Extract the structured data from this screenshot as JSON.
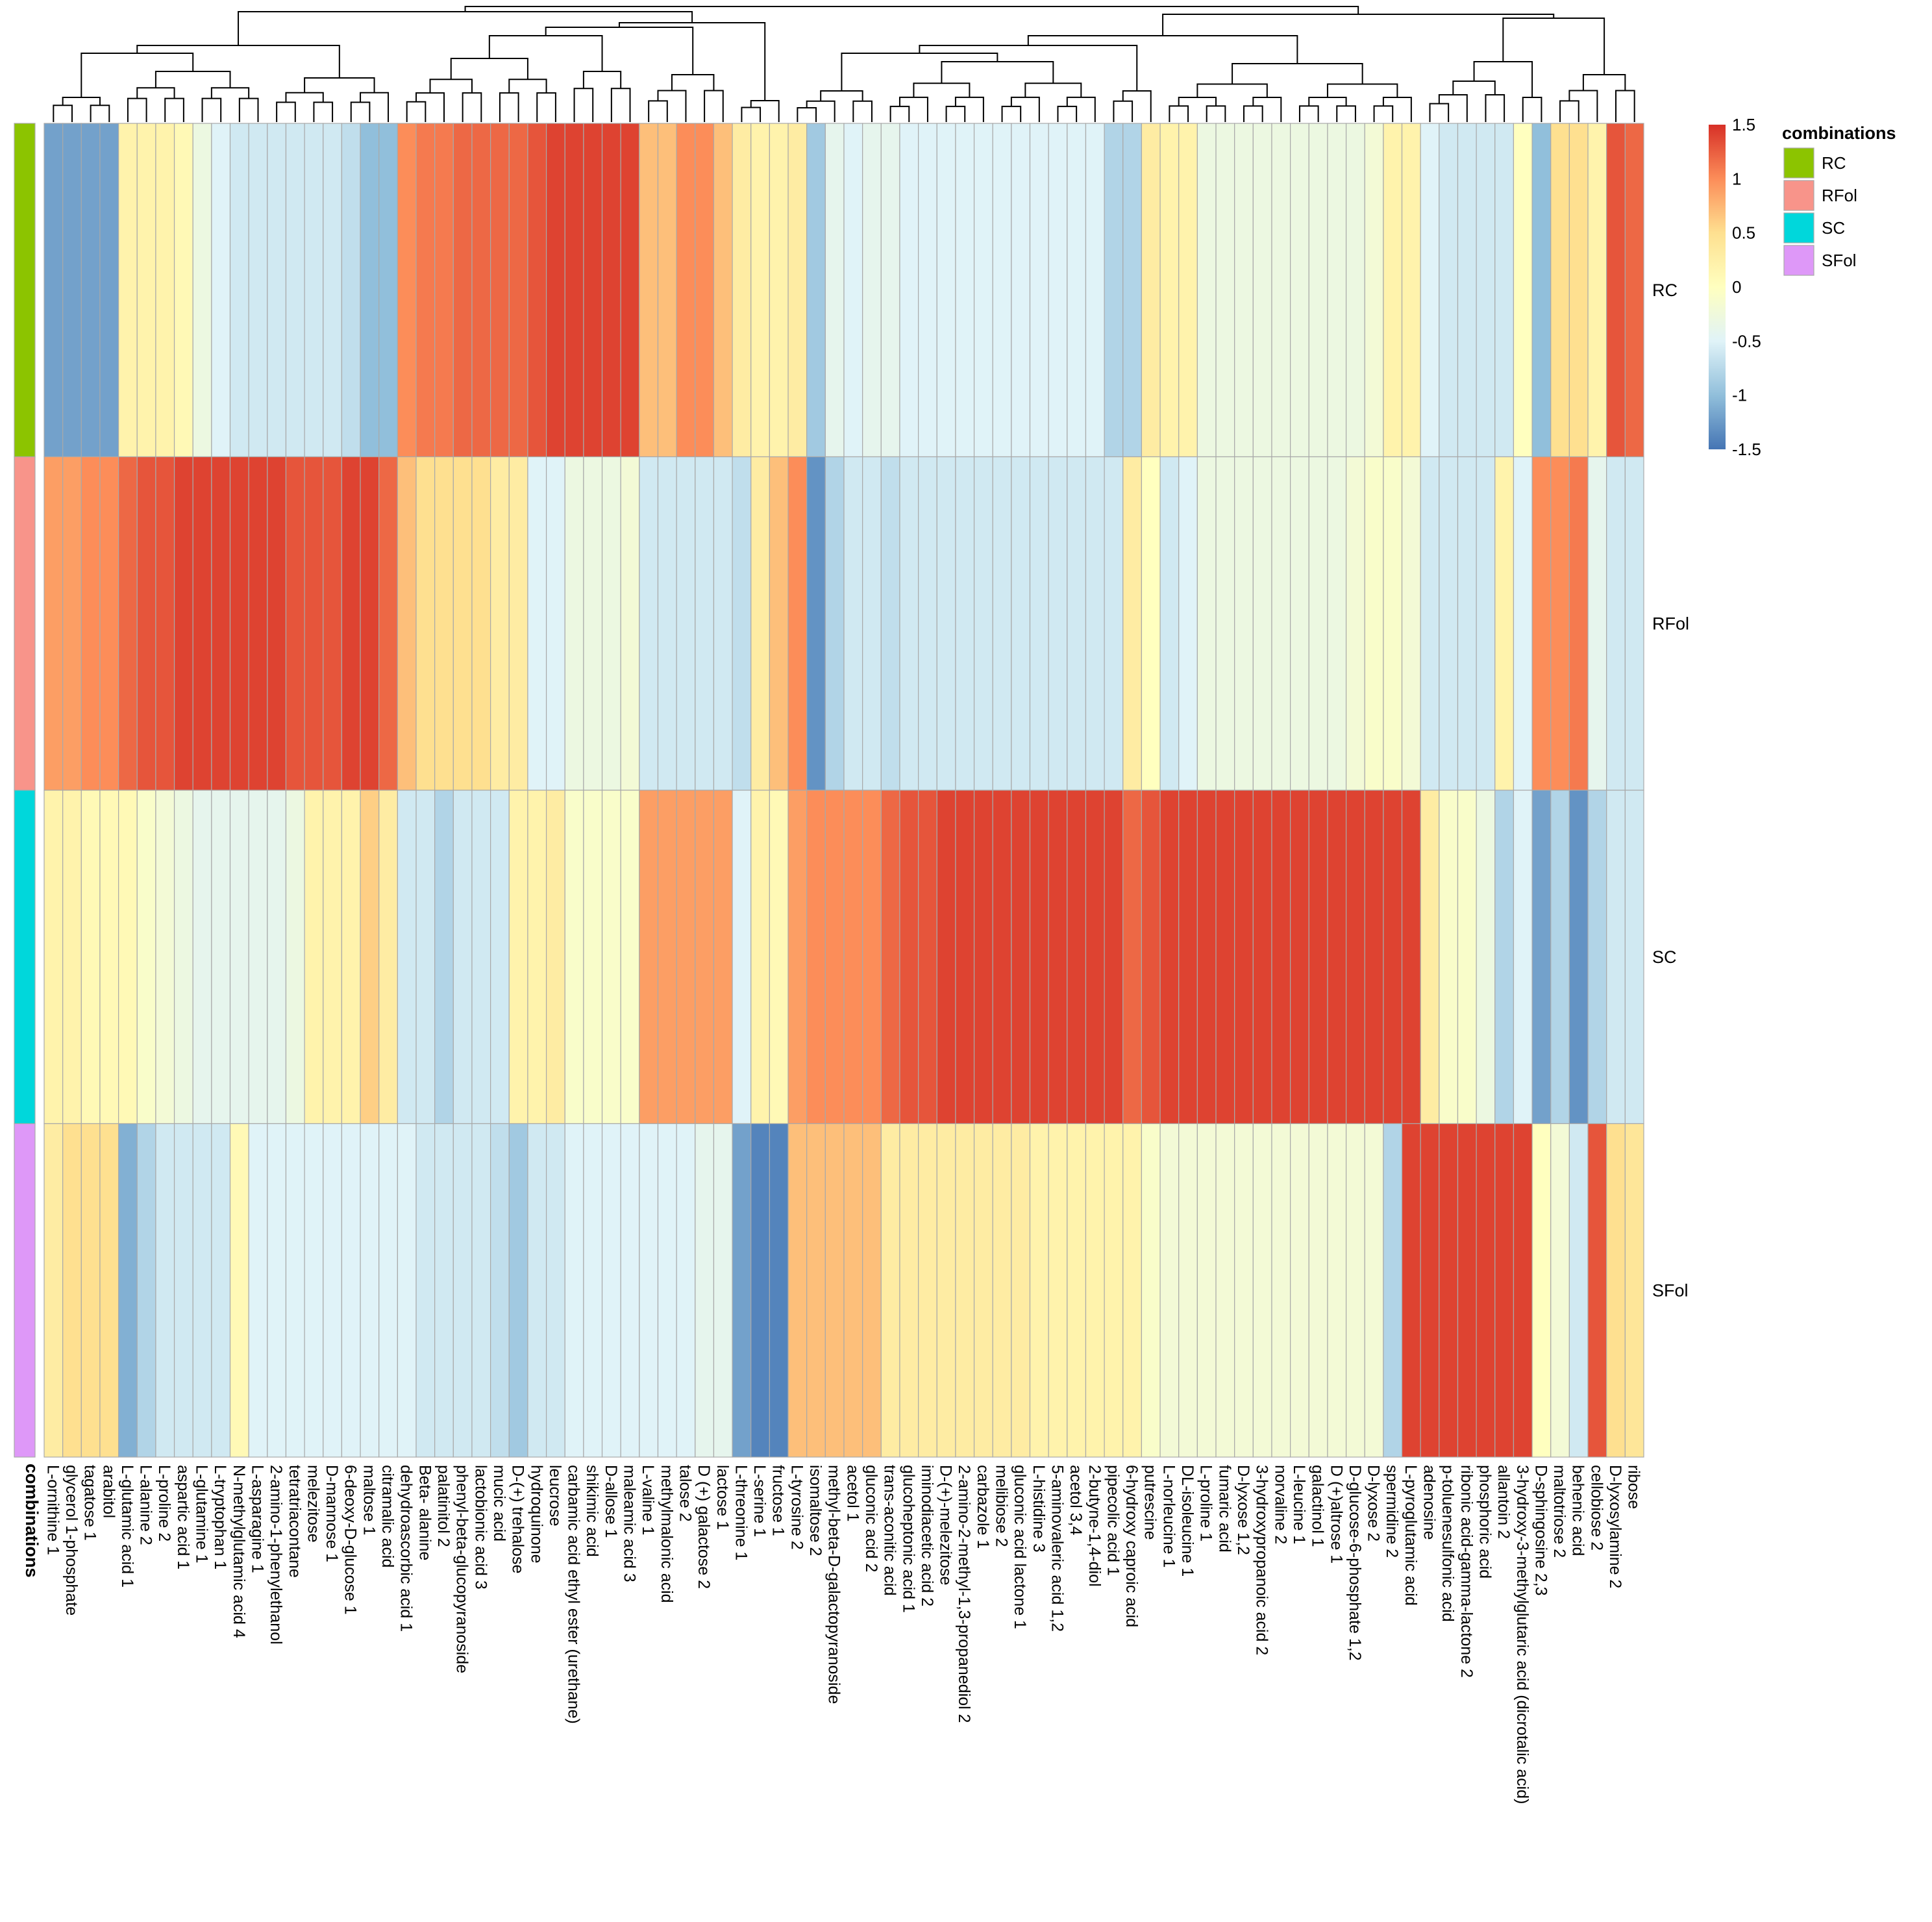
{
  "chart_data": {
    "type": "heatmap",
    "title": "",
    "annotation_name": "combinations",
    "rows": [
      "RC",
      "RFol",
      "SC",
      "SFol"
    ],
    "annotation_colors": {
      "RC": "#8CC400",
      "RFol": "#F8948A",
      "SC": "#00D7DB",
      "SFol": "#DE98F8"
    },
    "columns": [
      "L-ornithine 1",
      "glycerol 1-phosphate",
      "tagatose 1",
      "arabitol",
      "L-glutamic acid 1",
      "L-alanine 2",
      "L-proline 2",
      "aspartic acid 1",
      "L-glutamine 1",
      "L-tryptophan 1",
      "N-methylglutamic acid 4",
      "L-asparagine 1",
      "2-amino-1-phenylethanol",
      "tetratriacontane",
      "melezitose",
      "D-mannose 1",
      "6-deoxy-D-glucose 1",
      "maltose 1",
      "citramalic acid",
      "dehydroascorbic acid 1",
      "Beta- alanine",
      "palatinitol 2",
      "phenyl-beta-glucopyranoside",
      "lactobionic acid 3",
      "mucic acid",
      "D-(+) trehalose",
      "hydroquinone",
      "leucrose",
      "carbamic acid ethyl ester (urethane)",
      "shikimic acid",
      "D-allose 1",
      "maleamic acid 3",
      "L-valine 1",
      "methylmalonic acid",
      "talose 2",
      "D (+) galactose 2",
      "lactose 1",
      "L-threonine 1",
      "L-serine 1",
      "fructose 1",
      "L-tyrosine 2",
      "isomaltose 2",
      "methyl-beta-D-galactopyranoside",
      "acetol 1",
      "gluconic acid 2",
      "trans-aconitic acid",
      "glucoheptonic acid 1",
      "iminodiacetic acid 2",
      "D-(+)-melezitose",
      "2-amino-2-methyl-1,3-propanediol 2",
      "carbazole 1",
      "melibiose 2",
      "gluconic acid lactone 1",
      "L-histidine 3",
      "5-aminovaleric acid 1,2",
      "acetol 3,4",
      "2-butyne-1,4-diol",
      "pipecolic acid 1",
      "6-hydroxy caproic acid",
      "putrescine",
      "L-norleucine 1",
      "DL-isoleucine 1",
      "L-proline 1",
      "fumaric acid",
      "D-lyxose 1,2",
      "3-hydroxypropanoic acid 2",
      "norvaline 2",
      "L-leucine 1",
      "galactinol 1",
      "D (+)altrose 1",
      "D-glucose-6-phosphate 1,2",
      "D-lyxose 2",
      "spermidine 2",
      "L-pyroglutamic acid",
      "adenosine",
      "p-toluenesulfonic acid",
      "ribonic acid-gamma-lactone 2",
      "phosphoric acid",
      "allantoin 2",
      "3-hydroxy-3-methylglutaric acid (dicrotalic acid)",
      "D-sphingosine 2,3",
      "maltotriose 2",
      "behenic acid",
      "cellobiose 2",
      "D-lyxosylamine 2",
      "ribose"
    ],
    "values": [
      [
        -1.2,
        -1.2,
        -1.2,
        -1.2,
        0.2,
        0.2,
        0.2,
        0.1,
        -0.3,
        -0.5,
        -0.6,
        -0.6,
        -0.6,
        -0.6,
        -0.6,
        -0.6,
        -0.7,
        -1.0,
        -1.0,
        1.0,
        1.1,
        1.1,
        1.2,
        1.2,
        1.2,
        1.2,
        1.3,
        1.4,
        1.4,
        1.4,
        1.4,
        1.4,
        0.7,
        0.7,
        1.0,
        1.0,
        0.7,
        0.3,
        0.2,
        0.2,
        0.3,
        -0.9,
        -0.4,
        -0.5,
        -0.4,
        -0.4,
        -0.5,
        -0.5,
        -0.5,
        -0.5,
        -0.5,
        -0.5,
        -0.5,
        -0.5,
        -0.5,
        -0.5,
        -0.5,
        -0.8,
        -0.8,
        0.3,
        0.2,
        0.2,
        -0.3,
        -0.3,
        -0.3,
        -0.3,
        -0.3,
        -0.3,
        -0.3,
        -0.3,
        -0.3,
        -0.2,
        0.2,
        0.2,
        -0.5,
        -0.6,
        -0.6,
        -0.6,
        -0.6,
        0.0,
        -1.0,
        0.5,
        0.5,
        0.2,
        1.3,
        1.2
      ],
      [
        0.9,
        0.9,
        1.0,
        1.0,
        1.2,
        1.3,
        1.3,
        1.4,
        1.4,
        1.4,
        1.4,
        1.4,
        1.4,
        1.3,
        1.3,
        1.3,
        1.4,
        1.4,
        1.2,
        0.7,
        0.5,
        0.5,
        0.5,
        0.5,
        0.3,
        0.3,
        -0.5,
        -0.5,
        -0.3,
        -0.3,
        -0.3,
        -0.2,
        -0.6,
        -0.6,
        -0.6,
        -0.6,
        -0.6,
        -0.7,
        0.3,
        0.7,
        1.0,
        -1.3,
        -0.8,
        -0.6,
        -0.6,
        -0.7,
        -0.6,
        -0.6,
        -0.6,
        -0.6,
        -0.6,
        -0.6,
        -0.6,
        -0.6,
        -0.6,
        -0.6,
        -0.6,
        -0.6,
        0.3,
        0.0,
        -0.6,
        -0.5,
        -0.3,
        -0.3,
        -0.3,
        -0.3,
        -0.3,
        -0.3,
        -0.3,
        -0.3,
        -0.2,
        -0.1,
        -0.1,
        -0.2,
        -0.6,
        -0.6,
        -0.6,
        -0.6,
        0.2,
        -0.5,
        1.0,
        1.0,
        1.1,
        -0.4,
        -0.6,
        -0.6
      ],
      [
        0.2,
        0.2,
        0.1,
        0.1,
        0.1,
        -0.1,
        -0.2,
        -0.3,
        -0.4,
        -0.4,
        -0.4,
        -0.4,
        -0.4,
        -0.3,
        0.2,
        0.2,
        0.2,
        0.6,
        0.3,
        -0.6,
        -0.6,
        -0.8,
        -0.6,
        -0.6,
        -0.6,
        0.2,
        0.2,
        0.3,
        -0.1,
        -0.1,
        -0.1,
        -0.1,
        0.9,
        0.9,
        0.9,
        0.9,
        0.9,
        -0.5,
        0.2,
        0.1,
        0.9,
        1.0,
        1.0,
        1.0,
        1.0,
        1.2,
        1.3,
        1.3,
        1.4,
        1.4,
        1.4,
        1.4,
        1.4,
        1.4,
        1.4,
        1.4,
        1.4,
        1.4,
        1.2,
        1.3,
        1.4,
        1.4,
        1.4,
        1.4,
        1.4,
        1.4,
        1.4,
        1.4,
        1.4,
        1.4,
        1.4,
        1.4,
        1.4,
        1.4,
        0.3,
        -0.1,
        -0.1,
        -0.3,
        -0.8,
        -0.5,
        -1.2,
        -0.8,
        -1.3,
        -0.8,
        -0.6,
        -0.6
      ],
      [
        0.3,
        0.5,
        0.5,
        0.5,
        -1.1,
        -0.8,
        -0.6,
        -0.6,
        -0.6,
        -0.6,
        0.1,
        -0.5,
        -0.5,
        -0.5,
        -0.5,
        -0.5,
        -0.5,
        -0.5,
        -0.5,
        -0.5,
        -0.6,
        -0.6,
        -0.6,
        -0.6,
        -0.7,
        -0.9,
        -0.6,
        -0.6,
        -0.5,
        -0.5,
        -0.5,
        -0.5,
        -0.5,
        -0.5,
        -0.5,
        -0.4,
        -0.4,
        -1.2,
        -1.4,
        -1.4,
        0.7,
        0.7,
        0.7,
        0.7,
        0.7,
        0.3,
        0.3,
        0.3,
        0.3,
        0.3,
        0.3,
        0.3,
        0.3,
        0.2,
        0.2,
        0.2,
        0.2,
        0.2,
        0.2,
        -0.1,
        -0.2,
        -0.2,
        -0.2,
        -0.2,
        -0.2,
        -0.2,
        -0.2,
        -0.2,
        -0.2,
        -0.2,
        -0.2,
        -0.2,
        -0.8,
        1.4,
        1.4,
        1.4,
        1.4,
        1.4,
        1.4,
        1.4,
        0.0,
        -0.2,
        -0.6,
        1.3,
        0.5,
        0.4
      ]
    ],
    "scale": {
      "min": -1.5,
      "max": 1.5,
      "ticks": [
        "1.5",
        "1",
        "0.5",
        "0",
        "-0.5",
        "-1",
        "-1.5"
      ],
      "colors": [
        "#4575B4",
        "#91BFDB",
        "#E0F3F8",
        "#FFFFBF",
        "#FEE090",
        "#FC8D59",
        "#D73027"
      ]
    },
    "legend_title": "combinations",
    "legend": {
      "position": "right"
    }
  }
}
